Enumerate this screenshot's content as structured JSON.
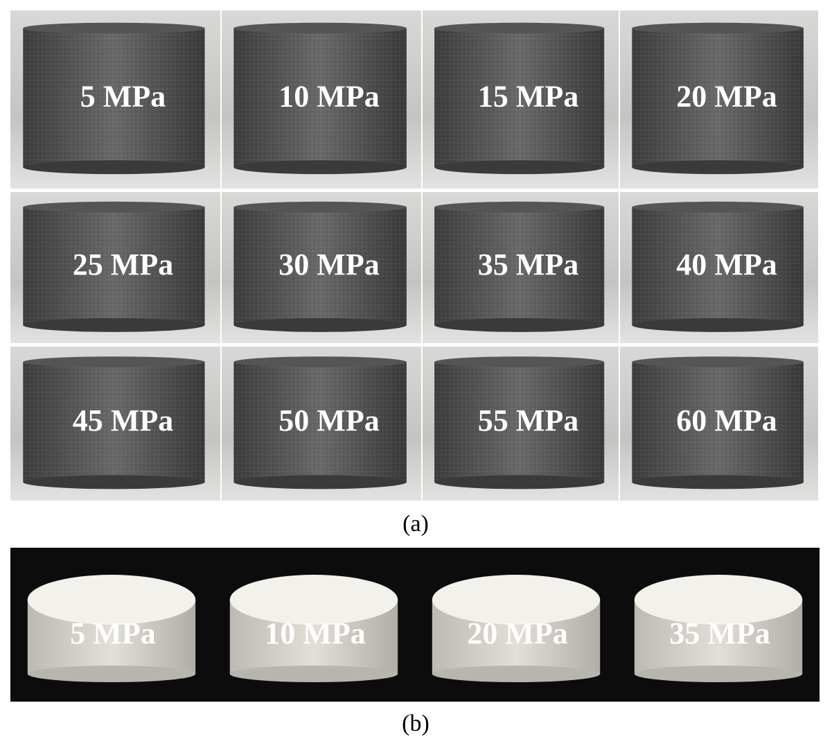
{
  "panel_a": {
    "labels": [
      "5 MPa",
      "10 MPa",
      "15 MPa",
      "20 MPa",
      "25 MPa",
      "30 MPa",
      "35 MPa",
      "40 MPa",
      "45 MPa",
      "50 MPa",
      "55 MPa",
      "60 MPa"
    ],
    "caption": "(a)"
  },
  "panel_b": {
    "labels": [
      "5 MPa",
      "10 MPa",
      "20 MPa",
      "35 MPa"
    ],
    "caption": "(b)"
  }
}
